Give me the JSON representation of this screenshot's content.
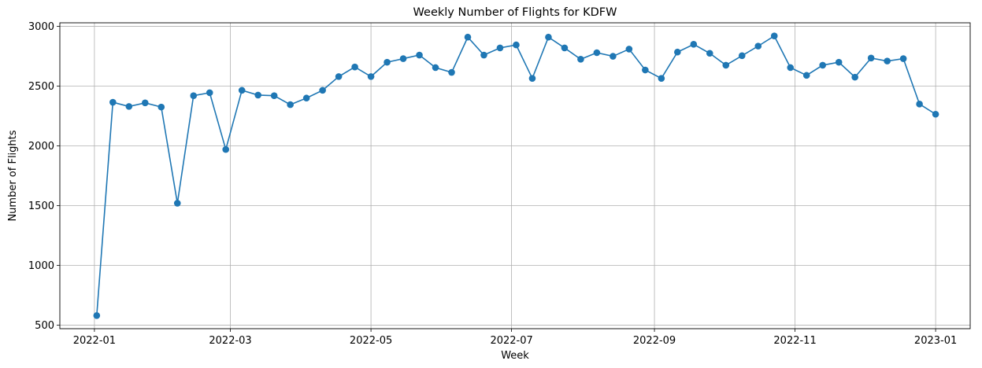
{
  "chart_data": {
    "type": "line",
    "title": "Weekly Number of Flights for KDFW",
    "xlabel": "Week",
    "ylabel": "Number of Flights",
    "x_ticks": [
      "2022-01",
      "2022-03",
      "2022-05",
      "2022-07",
      "2022-09",
      "2022-11",
      "2023-01"
    ],
    "y_ticks": [
      500,
      1000,
      1500,
      2000,
      2500,
      3000
    ],
    "ylim": [
      470,
      3030
    ],
    "xlim": [
      "2021-12-17",
      "2023-01-16"
    ],
    "grid": true,
    "series_color": "#1f77b4",
    "x": [
      "2022-01-02",
      "2022-01-09",
      "2022-01-16",
      "2022-01-23",
      "2022-01-30",
      "2022-02-06",
      "2022-02-13",
      "2022-02-20",
      "2022-02-27",
      "2022-03-06",
      "2022-03-13",
      "2022-03-20",
      "2022-03-27",
      "2022-04-03",
      "2022-04-10",
      "2022-04-17",
      "2022-04-24",
      "2022-05-01",
      "2022-05-08",
      "2022-05-15",
      "2022-05-22",
      "2022-05-29",
      "2022-06-05",
      "2022-06-12",
      "2022-06-19",
      "2022-06-26",
      "2022-07-03",
      "2022-07-10",
      "2022-07-17",
      "2022-07-24",
      "2022-07-31",
      "2022-08-07",
      "2022-08-14",
      "2022-08-21",
      "2022-08-28",
      "2022-09-04",
      "2022-09-11",
      "2022-09-18",
      "2022-09-25",
      "2022-10-02",
      "2022-10-09",
      "2022-10-16",
      "2022-10-23",
      "2022-10-30",
      "2022-11-06",
      "2022-11-13",
      "2022-11-20",
      "2022-11-27",
      "2022-12-04",
      "2022-12-11",
      "2022-12-18",
      "2022-12-25",
      "2023-01-01"
    ],
    "values": [
      580,
      2365,
      2330,
      2360,
      2325,
      1520,
      2420,
      2445,
      1970,
      2465,
      2425,
      2420,
      2345,
      2400,
      2465,
      2580,
      2660,
      2580,
      2700,
      2730,
      2760,
      2655,
      2615,
      2910,
      2760,
      2820,
      2845,
      2565,
      2910,
      2820,
      2725,
      2780,
      2750,
      2810,
      2635,
      2565,
      2785,
      2850,
      2775,
      2675,
      2755,
      2835,
      2920,
      2655,
      2590,
      2675,
      2700,
      2575,
      2735,
      2710,
      2730,
      2350,
      2265
    ]
  }
}
